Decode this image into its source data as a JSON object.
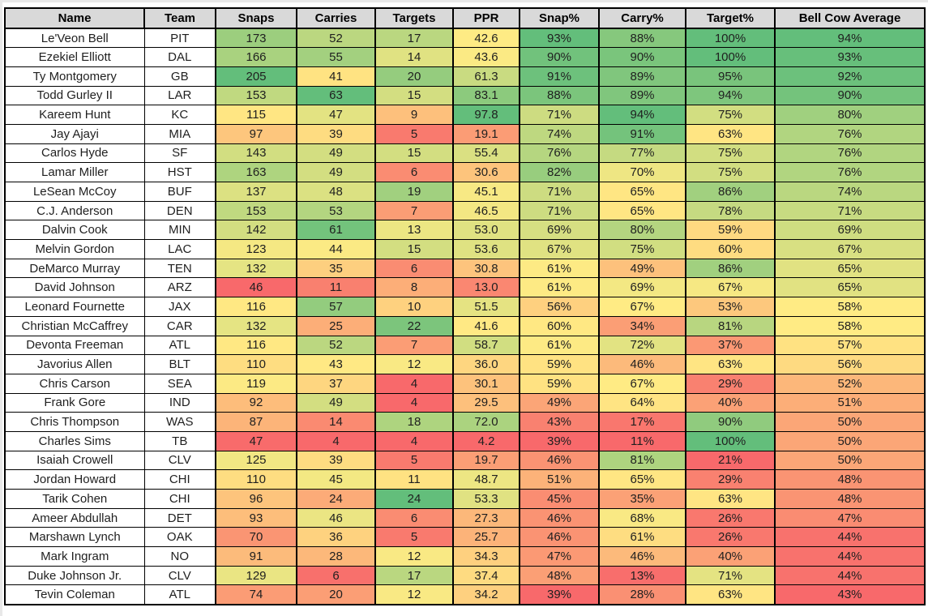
{
  "chart_data": {
    "type": "table",
    "title": "Bell Cow Average",
    "columns": [
      {
        "key": "name",
        "label": "Name"
      },
      {
        "key": "team",
        "label": "Team"
      },
      {
        "key": "snaps",
        "label": "Snaps"
      },
      {
        "key": "carries",
        "label": "Carries"
      },
      {
        "key": "targets",
        "label": "Targets"
      },
      {
        "key": "ppr",
        "label": "PPR"
      },
      {
        "key": "snap-pct",
        "label": "Snap%"
      },
      {
        "key": "carry-pct",
        "label": "Carry%"
      },
      {
        "key": "target-pct",
        "label": "Target%"
      },
      {
        "key": "bell-cow-average",
        "label": "Bell Cow Average"
      }
    ],
    "rows": [
      [
        "Le'Veon Bell",
        "PIT",
        173,
        52,
        17,
        42.6,
        93,
        88,
        100,
        94
      ],
      [
        "Ezekiel Elliott",
        "DAL",
        166,
        55,
        14,
        43.6,
        90,
        90,
        100,
        93
      ],
      [
        "Ty Montgomery",
        "GB",
        205,
        41,
        20,
        61.3,
        91,
        89,
        95,
        92
      ],
      [
        "Todd Gurley II",
        "LAR",
        153,
        63,
        15,
        83.1,
        88,
        89,
        94,
        90
      ],
      [
        "Kareem Hunt",
        "KC",
        115,
        47,
        9,
        97.8,
        71,
        94,
        75,
        80
      ],
      [
        "Jay Ajayi",
        "MIA",
        97,
        39,
        5,
        19.1,
        74,
        91,
        63,
        76
      ],
      [
        "Carlos Hyde",
        "SF",
        143,
        49,
        15,
        55.4,
        76,
        77,
        75,
        76
      ],
      [
        "Lamar Miller",
        "HST",
        163,
        49,
        6,
        30.6,
        82,
        70,
        75,
        76
      ],
      [
        "LeSean McCoy",
        "BUF",
        137,
        48,
        19,
        45.1,
        71,
        65,
        86,
        74
      ],
      [
        "C.J. Anderson",
        "DEN",
        153,
        53,
        7,
        46.5,
        71,
        65,
        78,
        71
      ],
      [
        "Dalvin Cook",
        "MIN",
        142,
        61,
        13,
        53.0,
        69,
        80,
        59,
        69
      ],
      [
        "Melvin Gordon",
        "LAC",
        123,
        44,
        15,
        53.6,
        67,
        75,
        60,
        67
      ],
      [
        "DeMarco Murray",
        "TEN",
        132,
        35,
        6,
        30.8,
        61,
        49,
        86,
        65
      ],
      [
        "David Johnson",
        "ARZ",
        46,
        11,
        8,
        13.0,
        61,
        69,
        67,
        65
      ],
      [
        "Leonard Fournette",
        "JAX",
        116,
        57,
        10,
        51.5,
        56,
        67,
        53,
        58
      ],
      [
        "Christian McCaffrey",
        "CAR",
        132,
        25,
        22,
        41.6,
        60,
        34,
        81,
        58
      ],
      [
        "Devonta Freeman",
        "ATL",
        116,
        52,
        7,
        58.7,
        61,
        72,
        37,
        57
      ],
      [
        "Javorius Allen",
        "BLT",
        110,
        43,
        12,
        36.0,
        59,
        46,
        63,
        56
      ],
      [
        "Chris Carson",
        "SEA",
        119,
        37,
        4,
        30.1,
        59,
        67,
        29,
        52
      ],
      [
        "Frank Gore",
        "IND",
        92,
        49,
        4,
        29.5,
        49,
        64,
        40,
        51
      ],
      [
        "Chris Thompson",
        "WAS",
        87,
        14,
        18,
        72.0,
        43,
        17,
        90,
        50
      ],
      [
        "Charles Sims",
        "TB",
        47,
        4,
        4,
        4.2,
        39,
        11,
        100,
        50
      ],
      [
        "Isaiah Crowell",
        "CLV",
        125,
        39,
        5,
        19.7,
        46,
        81,
        21,
        50
      ],
      [
        "Jordan Howard",
        "CHI",
        110,
        45,
        11,
        48.7,
        51,
        65,
        29,
        48
      ],
      [
        "Tarik Cohen",
        "CHI",
        96,
        24,
        24,
        53.3,
        45,
        35,
        63,
        48
      ],
      [
        "Ameer Abdullah",
        "DET",
        93,
        46,
        6,
        27.3,
        46,
        68,
        26,
        47
      ],
      [
        "Marshawn Lynch",
        "OAK",
        70,
        36,
        5,
        25.7,
        46,
        61,
        26,
        44
      ],
      [
        "Mark Ingram",
        "NO",
        91,
        28,
        12,
        34.3,
        47,
        46,
        40,
        44
      ],
      [
        "Duke Johnson Jr.",
        "CLV",
        129,
        6,
        17,
        37.4,
        48,
        13,
        71,
        44
      ],
      [
        "Tevin Coleman",
        "ATL",
        74,
        20,
        12,
        34.2,
        39,
        28,
        63,
        43
      ]
    ],
    "percent_columns": [
      6,
      7,
      8,
      9
    ],
    "decimal_columns": [
      5
    ],
    "colorscale_columns": [
      2,
      3,
      4,
      5,
      6,
      7,
      8,
      9
    ],
    "colorscale": {
      "min_color": "#F8696B",
      "mid_color": "#FFEB84",
      "max_color": "#63BE7B",
      "midpoint": "50th-percentile-per-column"
    },
    "layout": {
      "header_bg": "#D9D9D9",
      "border_color": "#000000",
      "text_color": "#1F1F1F"
    }
  }
}
